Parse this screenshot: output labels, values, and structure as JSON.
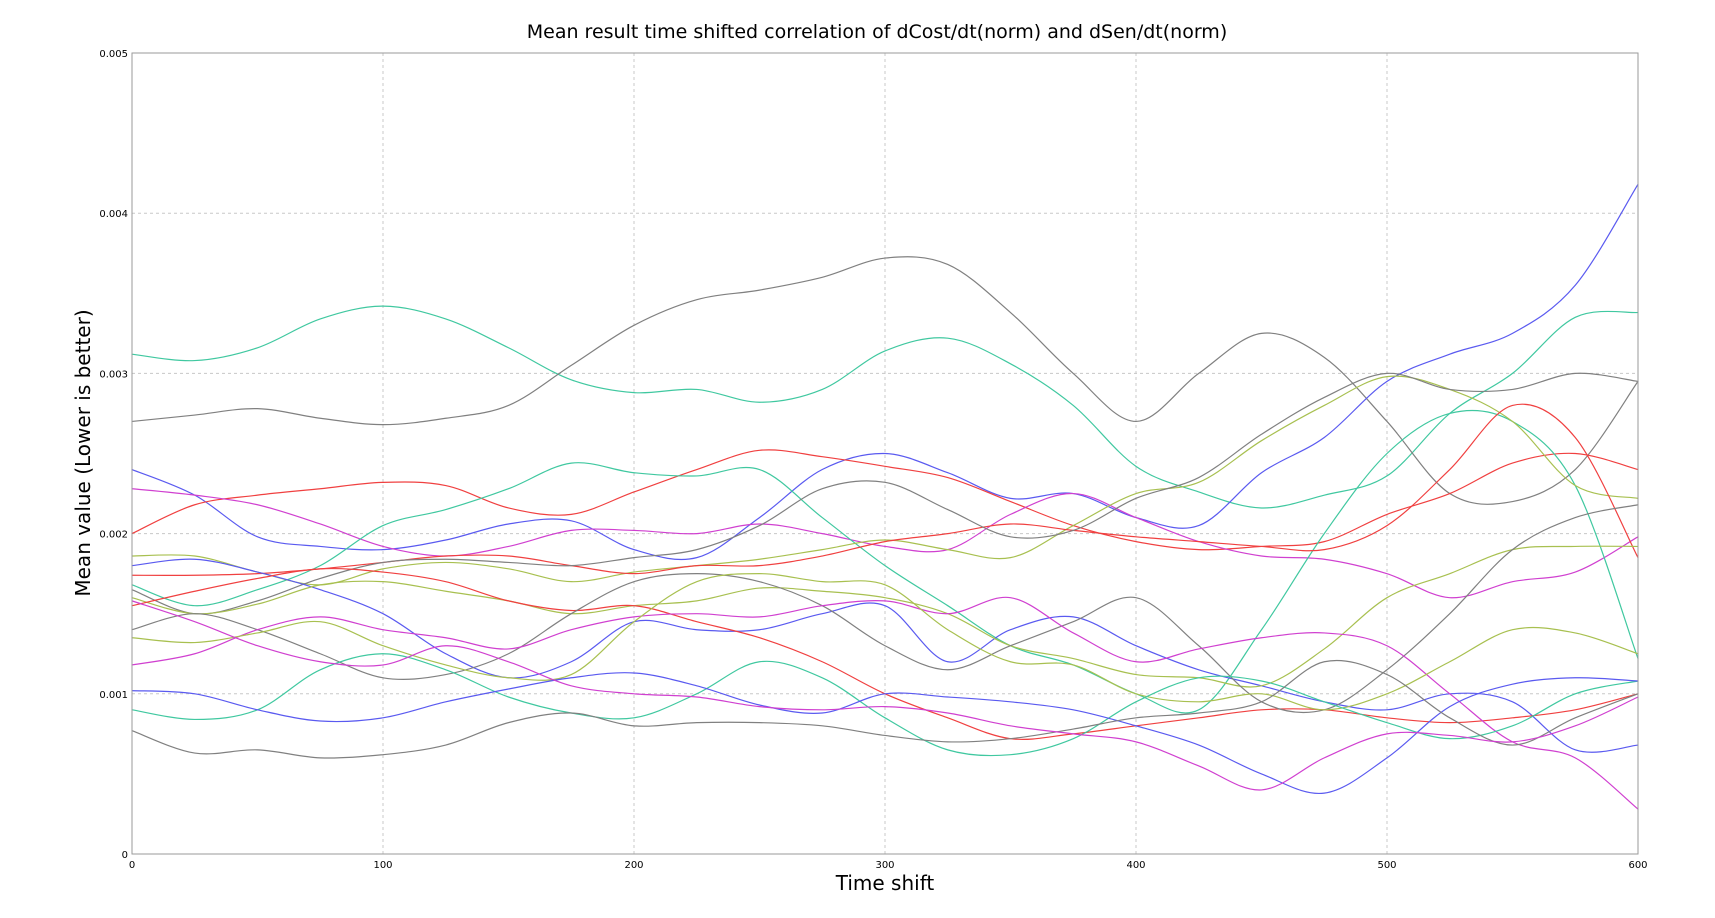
{
  "chart_data": {
    "type": "line",
    "title": "Mean result time shifted correlation of dCost/dt(norm) and dSen/dt(norm)",
    "xlabel": "Time shift",
    "ylabel": "Mean value (Lower is better)",
    "xlim": [
      0,
      600
    ],
    "ylim": [
      0,
      0.005
    ],
    "grid": true,
    "x_ticks": [
      0,
      100,
      200,
      300,
      400,
      500,
      600
    ],
    "x_tick_labels": [
      "0",
      "100",
      "200",
      "300",
      "400",
      "500",
      "600"
    ],
    "y_ticks": [
      0,
      0.001,
      0.002,
      0.003,
      0.004,
      0.005
    ],
    "y_tick_labels": [
      "0",
      "0.001",
      "0.002",
      "0.003",
      "0.004",
      "0.005"
    ],
    "x": [
      0,
      25,
      50,
      75,
      100,
      125,
      150,
      175,
      200,
      225,
      250,
      275,
      300,
      325,
      350,
      375,
      400,
      425,
      450,
      475,
      500,
      525,
      550,
      575,
      600
    ],
    "series": [
      {
        "color": "#40c8a0",
        "values": [
          0.00312,
          0.00308,
          0.00316,
          0.00334,
          0.00342,
          0.00334,
          0.00316,
          0.00296,
          0.00288,
          0.0029,
          0.00282,
          0.0029,
          0.00314,
          0.00322,
          0.00306,
          0.0028,
          0.00242,
          0.00226,
          0.00216,
          0.00224,
          0.00236,
          0.00275,
          0.003,
          0.00335,
          0.00338
        ]
      },
      {
        "color": "#808080",
        "values": [
          0.0027,
          0.00274,
          0.00278,
          0.00272,
          0.00268,
          0.00272,
          0.0028,
          0.00305,
          0.0033,
          0.00346,
          0.00352,
          0.0036,
          0.00372,
          0.00368,
          0.00338,
          0.003,
          0.0027,
          0.003,
          0.00325,
          0.0031,
          0.0027,
          0.00225,
          0.0022,
          0.0024,
          0.00295
        ]
      },
      {
        "color": "#5a5af0",
        "values": [
          0.0024,
          0.00224,
          0.00198,
          0.00192,
          0.0019,
          0.00196,
          0.00206,
          0.00208,
          0.0019,
          0.00185,
          0.0021,
          0.0024,
          0.0025,
          0.00238,
          0.00222,
          0.00225,
          0.0021,
          0.00205,
          0.00238,
          0.0026,
          0.00295,
          0.00312,
          0.00325,
          0.00355,
          0.00418
        ]
      },
      {
        "color": "#f04040",
        "values": [
          0.002,
          0.00218,
          0.00224,
          0.00228,
          0.00232,
          0.0023,
          0.00216,
          0.00212,
          0.00226,
          0.0024,
          0.00252,
          0.00248,
          0.00242,
          0.00235,
          0.0022,
          0.00205,
          0.00195,
          0.0019,
          0.00192,
          0.00195,
          0.00212,
          0.00225,
          0.00244,
          0.0025,
          0.0024
        ]
      },
      {
        "color": "#d040d0",
        "values": [
          0.00228,
          0.00224,
          0.00218,
          0.00206,
          0.00192,
          0.00186,
          0.00192,
          0.00202,
          0.00202,
          0.002,
          0.00206,
          0.002,
          0.00192,
          0.0019,
          0.00212,
          0.00225,
          0.0021,
          0.00195,
          0.00186,
          0.00184,
          0.00175,
          0.0016,
          0.0017,
          0.00176,
          0.00198
        ]
      },
      {
        "color": "#40c8a0",
        "values": [
          0.00168,
          0.00155,
          0.00165,
          0.0018,
          0.00205,
          0.00215,
          0.00228,
          0.00244,
          0.00238,
          0.00236,
          0.0024,
          0.0021,
          0.0018,
          0.00155,
          0.0013,
          0.00118,
          0.001,
          0.0009,
          0.0014,
          0.002,
          0.0025,
          0.00275,
          0.0027,
          0.0023,
          0.00122
        ]
      },
      {
        "color": "#a8c050",
        "values": [
          0.00186,
          0.00186,
          0.00176,
          0.00168,
          0.00178,
          0.00182,
          0.00178,
          0.0017,
          0.00176,
          0.0018,
          0.00184,
          0.0019,
          0.00196,
          0.0019,
          0.00185,
          0.00205,
          0.00225,
          0.00232,
          0.00258,
          0.0028,
          0.00298,
          0.0029,
          0.0027,
          0.0023,
          0.00222
        ]
      },
      {
        "color": "#f04040",
        "values": [
          0.00174,
          0.00174,
          0.00175,
          0.00178,
          0.00182,
          0.00186,
          0.00186,
          0.0018,
          0.00175,
          0.0018,
          0.0018,
          0.00186,
          0.00195,
          0.002,
          0.00206,
          0.00202,
          0.00198,
          0.00195,
          0.00192,
          0.0019,
          0.00205,
          0.0024,
          0.0028,
          0.0026,
          0.00185
        ]
      },
      {
        "color": "#808080",
        "values": [
          0.00165,
          0.0015,
          0.00158,
          0.00172,
          0.00182,
          0.00184,
          0.00182,
          0.0018,
          0.00185,
          0.0019,
          0.00205,
          0.00228,
          0.00232,
          0.00215,
          0.00198,
          0.00202,
          0.00222,
          0.00235,
          0.00262,
          0.00285,
          0.003,
          0.0029,
          0.0029,
          0.003,
          0.00295
        ]
      },
      {
        "color": "#5a5af0",
        "values": [
          0.0018,
          0.00184,
          0.00176,
          0.00165,
          0.0015,
          0.00125,
          0.0011,
          0.0012,
          0.00145,
          0.0014,
          0.0014,
          0.0015,
          0.00155,
          0.0012,
          0.0014,
          0.00148,
          0.0013,
          0.00115,
          0.00105,
          0.00095,
          0.0009,
          0.001,
          0.00095,
          0.00065,
          0.00068
        ]
      },
      {
        "color": "#a8c050",
        "values": [
          0.0016,
          0.0015,
          0.00156,
          0.00168,
          0.0017,
          0.00164,
          0.00158,
          0.0015,
          0.00155,
          0.00158,
          0.00166,
          0.00164,
          0.0016,
          0.0015,
          0.0013,
          0.00122,
          0.00112,
          0.0011,
          0.00105,
          0.00128,
          0.0016,
          0.00175,
          0.0019,
          0.00192,
          0.00192
        ]
      },
      {
        "color": "#f04040",
        "values": [
          0.00155,
          0.00164,
          0.00172,
          0.00178,
          0.00176,
          0.0017,
          0.00158,
          0.00152,
          0.00155,
          0.00145,
          0.00135,
          0.0012,
          0.001,
          0.00085,
          0.00072,
          0.00075,
          0.0008,
          0.00085,
          0.0009,
          0.0009,
          0.00085,
          0.00082,
          0.00085,
          0.0009,
          0.001
        ]
      },
      {
        "color": "#808080",
        "values": [
          0.0014,
          0.0015,
          0.0014,
          0.00125,
          0.0011,
          0.00112,
          0.00125,
          0.0015,
          0.0017,
          0.00175,
          0.0017,
          0.00155,
          0.0013,
          0.00115,
          0.0013,
          0.00145,
          0.0016,
          0.0013,
          0.00095,
          0.0009,
          0.00115,
          0.0015,
          0.0019,
          0.0021,
          0.00218
        ]
      },
      {
        "color": "#d040d0",
        "values": [
          0.00118,
          0.00125,
          0.0014,
          0.00148,
          0.0014,
          0.00135,
          0.00128,
          0.0014,
          0.00148,
          0.0015,
          0.00148,
          0.00155,
          0.00158,
          0.0015,
          0.0016,
          0.00138,
          0.0012,
          0.00128,
          0.00135,
          0.00138,
          0.0013,
          0.001,
          0.0007,
          0.0006,
          0.00028
        ]
      },
      {
        "color": "#a8c050",
        "values": [
          0.00135,
          0.00132,
          0.00138,
          0.00145,
          0.0013,
          0.00118,
          0.0011,
          0.00112,
          0.00145,
          0.0017,
          0.00175,
          0.0017,
          0.00168,
          0.0014,
          0.0012,
          0.00118,
          0.001,
          0.00095,
          0.001,
          0.0009,
          0.001,
          0.0012,
          0.0014,
          0.00138,
          0.00125
        ]
      },
      {
        "color": "#40c8a0",
        "values": [
          0.0009,
          0.00084,
          0.0009,
          0.00115,
          0.00125,
          0.00115,
          0.00098,
          0.00088,
          0.00085,
          0.001,
          0.0012,
          0.0011,
          0.00085,
          0.00065,
          0.00062,
          0.00072,
          0.00095,
          0.0011,
          0.00108,
          0.00095,
          0.00082,
          0.00072,
          0.0008,
          0.001,
          0.00108
        ]
      },
      {
        "color": "#5a5af0",
        "values": [
          0.00102,
          0.001,
          0.0009,
          0.00083,
          0.00085,
          0.00095,
          0.00103,
          0.0011,
          0.00113,
          0.00105,
          0.00093,
          0.00088,
          0.001,
          0.00098,
          0.00095,
          0.0009,
          0.0008,
          0.00068,
          0.0005,
          0.00038,
          0.0006,
          0.00092,
          0.00106,
          0.0011,
          0.00108
        ]
      },
      {
        "color": "#808080",
        "values": [
          0.00077,
          0.00063,
          0.00065,
          0.0006,
          0.00062,
          0.00068,
          0.00082,
          0.00088,
          0.0008,
          0.00082,
          0.00082,
          0.0008,
          0.00074,
          0.0007,
          0.00072,
          0.00078,
          0.00085,
          0.00088,
          0.00095,
          0.0012,
          0.00112,
          0.00085,
          0.00068,
          0.00085,
          0.001
        ]
      },
      {
        "color": "#d040d0",
        "values": [
          0.00158,
          0.00145,
          0.0013,
          0.0012,
          0.00118,
          0.0013,
          0.0012,
          0.00105,
          0.001,
          0.00098,
          0.00092,
          0.0009,
          0.00092,
          0.00088,
          0.0008,
          0.00075,
          0.0007,
          0.00055,
          0.0004,
          0.0006,
          0.00075,
          0.00074,
          0.0007,
          0.0008,
          0.00098
        ]
      }
    ]
  }
}
